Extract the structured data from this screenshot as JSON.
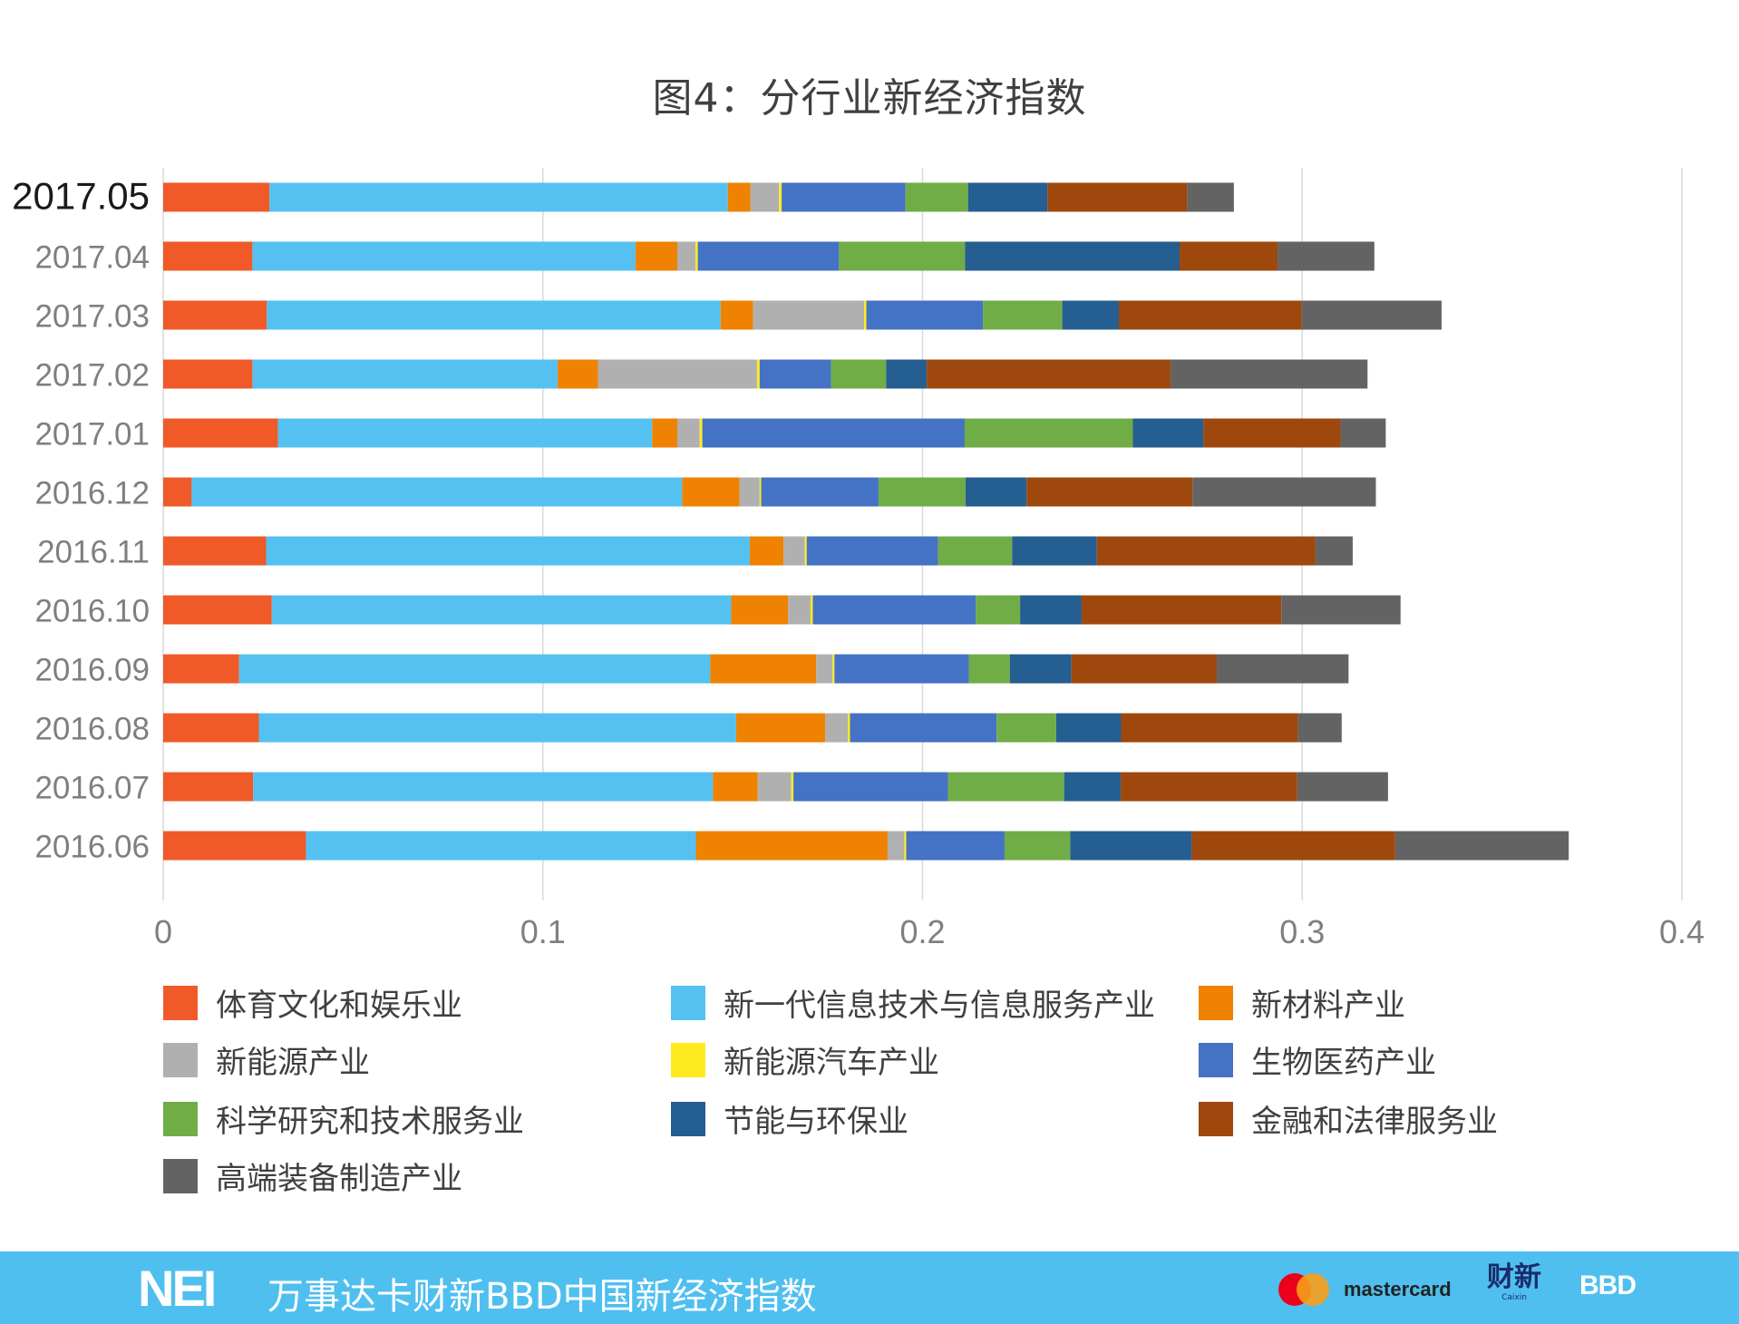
{
  "chart_data": {
    "type": "bar",
    "orientation": "horizontal",
    "stacked": true,
    "title": "图4：分行业新经济指数",
    "xlabel": "",
    "ylabel": "",
    "xlim": [
      0,
      0.4
    ],
    "xticks": [
      0,
      0.1,
      0.2,
      0.3,
      0.4
    ],
    "xtick_labels": [
      "0",
      "0.1",
      "0.2",
      "0.3",
      "0.4"
    ],
    "grid": true,
    "legend_position": "bottom",
    "categories": [
      "2017.05",
      "2017.04",
      "2017.03",
      "2017.02",
      "2017.01",
      "2016.12",
      "2016.11",
      "2016.10",
      "2016.09",
      "2016.08",
      "2016.07",
      "2016.06"
    ],
    "series": [
      {
        "name": "体育文化和娱乐业",
        "color": "#f05a28",
        "values": [
          0.028,
          0.0235,
          0.0273,
          0.0235,
          0.0302,
          0.0075,
          0.0271,
          0.0286,
          0.02,
          0.0252,
          0.0237,
          0.0376
        ]
      },
      {
        "name": "新一代信息技术与信息服务产业",
        "color": "#55c1f1",
        "values": [
          0.1207,
          0.1009,
          0.1195,
          0.0804,
          0.0986,
          0.1292,
          0.1274,
          0.121,
          0.1241,
          0.1257,
          0.1211,
          0.1027
        ]
      },
      {
        "name": "新材料产业",
        "color": "#ef8200",
        "values": [
          0.006,
          0.011,
          0.0086,
          0.0106,
          0.0066,
          0.0151,
          0.0089,
          0.015,
          0.0279,
          0.0235,
          0.0118,
          0.0505
        ]
      },
      {
        "name": "新能源产业",
        "color": "#b0b0b0",
        "values": [
          0.0075,
          0.0048,
          0.0292,
          0.0419,
          0.0059,
          0.0053,
          0.0056,
          0.0059,
          0.0043,
          0.0059,
          0.0088,
          0.0044
        ]
      },
      {
        "name": "新能源汽车产业",
        "color": "#ffea1f",
        "values": [
          0.0007,
          0.0006,
          0.0006,
          0.0007,
          0.0007,
          0.0004,
          0.0005,
          0.0006,
          0.0005,
          0.0006,
          0.0006,
          0.0005
        ]
      },
      {
        "name": "生物医药产业",
        "color": "#4472c4",
        "values": [
          0.0326,
          0.0372,
          0.0307,
          0.0188,
          0.0691,
          0.0309,
          0.0346,
          0.0429,
          0.0354,
          0.0386,
          0.0407,
          0.0259
        ]
      },
      {
        "name": "科学研究和技术服务业",
        "color": "#70ad47",
        "values": [
          0.0165,
          0.0332,
          0.0209,
          0.0145,
          0.0443,
          0.0229,
          0.0195,
          0.0117,
          0.0108,
          0.0157,
          0.0306,
          0.0173
        ]
      },
      {
        "name": "节能与环保业",
        "color": "#255e91",
        "values": [
          0.0209,
          0.0565,
          0.0149,
          0.0107,
          0.0186,
          0.0161,
          0.0223,
          0.0162,
          0.0162,
          0.0171,
          0.0149,
          0.032
        ]
      },
      {
        "name": "金融和法律服务业",
        "color": "#9e480e",
        "values": [
          0.0368,
          0.0258,
          0.0482,
          0.0642,
          0.0361,
          0.0437,
          0.0576,
          0.0526,
          0.0383,
          0.0466,
          0.0465,
          0.0536
        ]
      },
      {
        "name": "高端装备制造产业",
        "color": "#636363",
        "values": [
          0.0123,
          0.0255,
          0.0368,
          0.0519,
          0.0119,
          0.0483,
          0.0098,
          0.0314,
          0.0347,
          0.0115,
          0.0239,
          0.0457
        ]
      }
    ]
  },
  "footer": {
    "logo": "NEI",
    "text": "万事达卡财新BBD中国新经济指数",
    "mastercard": "mastercard",
    "caixin_cn": "财新",
    "caixin_en": "Caixin",
    "bbd": "BBD"
  },
  "colors": {
    "footer_bg": "#4fbfef",
    "grid": "#d9d9d9",
    "axis_text": "#7f7f7f"
  }
}
